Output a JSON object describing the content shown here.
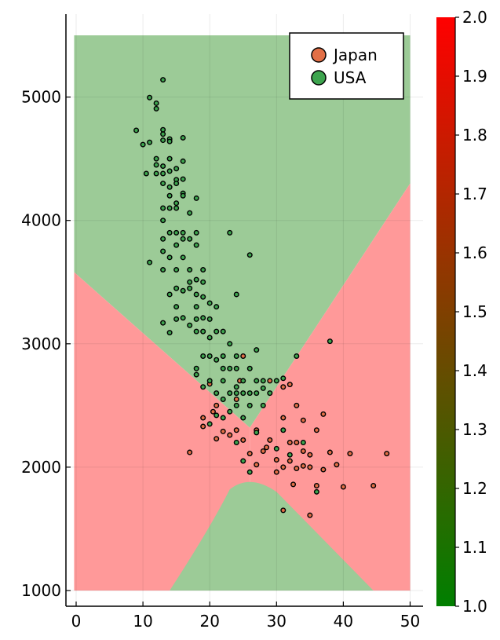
{
  "chart_data": {
    "type": "scatter",
    "title": "",
    "xlabel": "",
    "ylabel": "",
    "xlim": [
      0,
      50
    ],
    "ylim": [
      1000,
      5500
    ],
    "xticks": [
      "0",
      "10",
      "20",
      "30",
      "40",
      "50"
    ],
    "yticks": [
      "1000",
      "2000",
      "3000",
      "4000",
      "5000"
    ],
    "grid": true,
    "legend_position": "top-right",
    "background_regions": {
      "description": "decision regions of a classifier",
      "classes": [
        {
          "name": "Japan",
          "color": "#ff9999"
        },
        {
          "name": "USA",
          "color": "#9ccb97"
        }
      ]
    },
    "colorbar": {
      "min": 1.0,
      "max": 2.0,
      "ticks": [
        "1.0",
        "1.1",
        "1.2",
        "1.3",
        "1.4",
        "1.5",
        "1.6",
        "1.7",
        "1.8",
        "1.9",
        "2.0"
      ],
      "color_low": "#007f00",
      "color_high": "#ff0000"
    },
    "series": [
      {
        "name": "Japan",
        "color": "#e26f46",
        "points": [
          [
            20,
            2675
          ],
          [
            20.5,
            2450
          ],
          [
            21,
            2500
          ],
          [
            22,
            2290
          ],
          [
            24,
            2300
          ],
          [
            24,
            2550
          ],
          [
            24.5,
            2700
          ],
          [
            25,
            2900
          ],
          [
            19,
            2400
          ],
          [
            17,
            2120
          ],
          [
            19,
            2330
          ],
          [
            21,
            2230
          ],
          [
            23,
            2260
          ],
          [
            25,
            2220
          ],
          [
            26,
            2110
          ],
          [
            27,
            2300
          ],
          [
            28,
            2130
          ],
          [
            29,
            2220
          ],
          [
            30,
            2060
          ],
          [
            31,
            2000
          ],
          [
            31,
            2400
          ],
          [
            32,
            2200
          ],
          [
            32,
            2050
          ],
          [
            33,
            1990
          ],
          [
            33,
            2200
          ],
          [
            33,
            2500
          ],
          [
            34,
            2130
          ],
          [
            34,
            2380
          ],
          [
            35,
            2100
          ],
          [
            35,
            2000
          ],
          [
            36,
            1850
          ],
          [
            36,
            2300
          ],
          [
            37,
            2430
          ],
          [
            37,
            1980
          ],
          [
            38,
            2120
          ],
          [
            39,
            2020
          ],
          [
            40,
            1840
          ],
          [
            41,
            2110
          ],
          [
            44.5,
            1850
          ],
          [
            46.5,
            2110
          ],
          [
            31,
            2650
          ],
          [
            32,
            2670
          ],
          [
            29,
            2700
          ],
          [
            31,
            1650
          ],
          [
            35,
            1610
          ],
          [
            32.5,
            1860
          ],
          [
            30,
            1960
          ],
          [
            27,
            2020
          ],
          [
            28.5,
            2160
          ],
          [
            34,
            2010
          ]
        ]
      },
      {
        "name": "USA",
        "color": "#3da44e",
        "points": [
          [
            9,
            4730
          ],
          [
            10,
            4615
          ],
          [
            10.5,
            4380
          ],
          [
            11,
            4633
          ],
          [
            11,
            4996
          ],
          [
            11,
            3660
          ],
          [
            12,
            4950
          ],
          [
            12,
            4906
          ],
          [
            12,
            4500
          ],
          [
            12,
            4450
          ],
          [
            12,
            4380
          ],
          [
            13,
            4735
          ],
          [
            13,
            4700
          ],
          [
            13,
            4650
          ],
          [
            13,
            4440
          ],
          [
            13,
            4380
          ],
          [
            13,
            4300
          ],
          [
            13,
            4100
          ],
          [
            13,
            4000
          ],
          [
            13,
            3850
          ],
          [
            13,
            3750
          ],
          [
            13,
            3600
          ],
          [
            13,
            3170
          ],
          [
            13,
            5140
          ],
          [
            14,
            4660
          ],
          [
            14,
            4640
          ],
          [
            14,
            4500
          ],
          [
            14,
            4400
          ],
          [
            14,
            4270
          ],
          [
            14,
            4200
          ],
          [
            14,
            4100
          ],
          [
            14,
            3900
          ],
          [
            14,
            3700
          ],
          [
            14,
            3400
          ],
          [
            14,
            3090
          ],
          [
            15,
            4420
          ],
          [
            15,
            4330
          ],
          [
            15,
            4300
          ],
          [
            15,
            4140
          ],
          [
            15,
            4100
          ],
          [
            15,
            3900
          ],
          [
            15,
            3800
          ],
          [
            15,
            3600
          ],
          [
            15,
            3450
          ],
          [
            15,
            3300
          ],
          [
            15,
            3200
          ],
          [
            16,
            4670
          ],
          [
            16,
            4480
          ],
          [
            16,
            4335
          ],
          [
            16,
            4220
          ],
          [
            16,
            4200
          ],
          [
            16,
            3900
          ],
          [
            16,
            3850
          ],
          [
            16,
            3700
          ],
          [
            16,
            3430
          ],
          [
            16,
            3210
          ],
          [
            17,
            4060
          ],
          [
            17,
            3850
          ],
          [
            17,
            3600
          ],
          [
            17,
            3500
          ],
          [
            17,
            3450
          ],
          [
            17,
            3150
          ],
          [
            18,
            4180
          ],
          [
            18,
            3900
          ],
          [
            18,
            3800
          ],
          [
            18,
            3520
          ],
          [
            18,
            3400
          ],
          [
            18,
            3300
          ],
          [
            18,
            3200
          ],
          [
            18,
            3100
          ],
          [
            18,
            2800
          ],
          [
            18,
            2750
          ],
          [
            19,
            3600
          ],
          [
            19,
            3500
          ],
          [
            19,
            3380
          ],
          [
            19,
            3210
          ],
          [
            19,
            3100
          ],
          [
            19,
            2900
          ],
          [
            19,
            2650
          ],
          [
            20,
            3330
          ],
          [
            20,
            3200
          ],
          [
            20,
            3050
          ],
          [
            20,
            2900
          ],
          [
            20,
            2700
          ],
          [
            21,
            3300
          ],
          [
            21,
            3100
          ],
          [
            21,
            2870
          ],
          [
            21,
            2600
          ],
          [
            22,
            3100
          ],
          [
            22,
            2900
          ],
          [
            22,
            2800
          ],
          [
            22,
            2700
          ],
          [
            22,
            2400
          ],
          [
            23,
            3900
          ],
          [
            23,
            3000
          ],
          [
            23,
            2800
          ],
          [
            23,
            2600
          ],
          [
            24,
            3400
          ],
          [
            24,
            2900
          ],
          [
            24,
            2800
          ],
          [
            24,
            2600
          ],
          [
            24,
            2500
          ],
          [
            25,
            2700
          ],
          [
            25,
            2600
          ],
          [
            25,
            2400
          ],
          [
            26,
            2800
          ],
          [
            26,
            2600
          ],
          [
            26,
            2500
          ],
          [
            26,
            3720
          ],
          [
            27,
            2950
          ],
          [
            27,
            2700
          ],
          [
            27,
            2600
          ],
          [
            28,
            2700
          ],
          [
            28,
            2640
          ],
          [
            29,
            2600
          ],
          [
            30,
            2700
          ],
          [
            31,
            2300
          ],
          [
            32,
            2100
          ],
          [
            33,
            2900
          ],
          [
            34,
            2200
          ],
          [
            36,
            1800
          ],
          [
            38,
            3020
          ],
          [
            25,
            2050
          ],
          [
            26,
            1960
          ],
          [
            27,
            2280
          ],
          [
            21,
            2420
          ],
          [
            23,
            2450
          ],
          [
            24,
            2200
          ],
          [
            20,
            2350
          ],
          [
            28,
            2500
          ],
          [
            22,
            2550
          ],
          [
            30,
            2150
          ],
          [
            31,
            2720
          ],
          [
            24,
            2650
          ]
        ]
      }
    ]
  }
}
